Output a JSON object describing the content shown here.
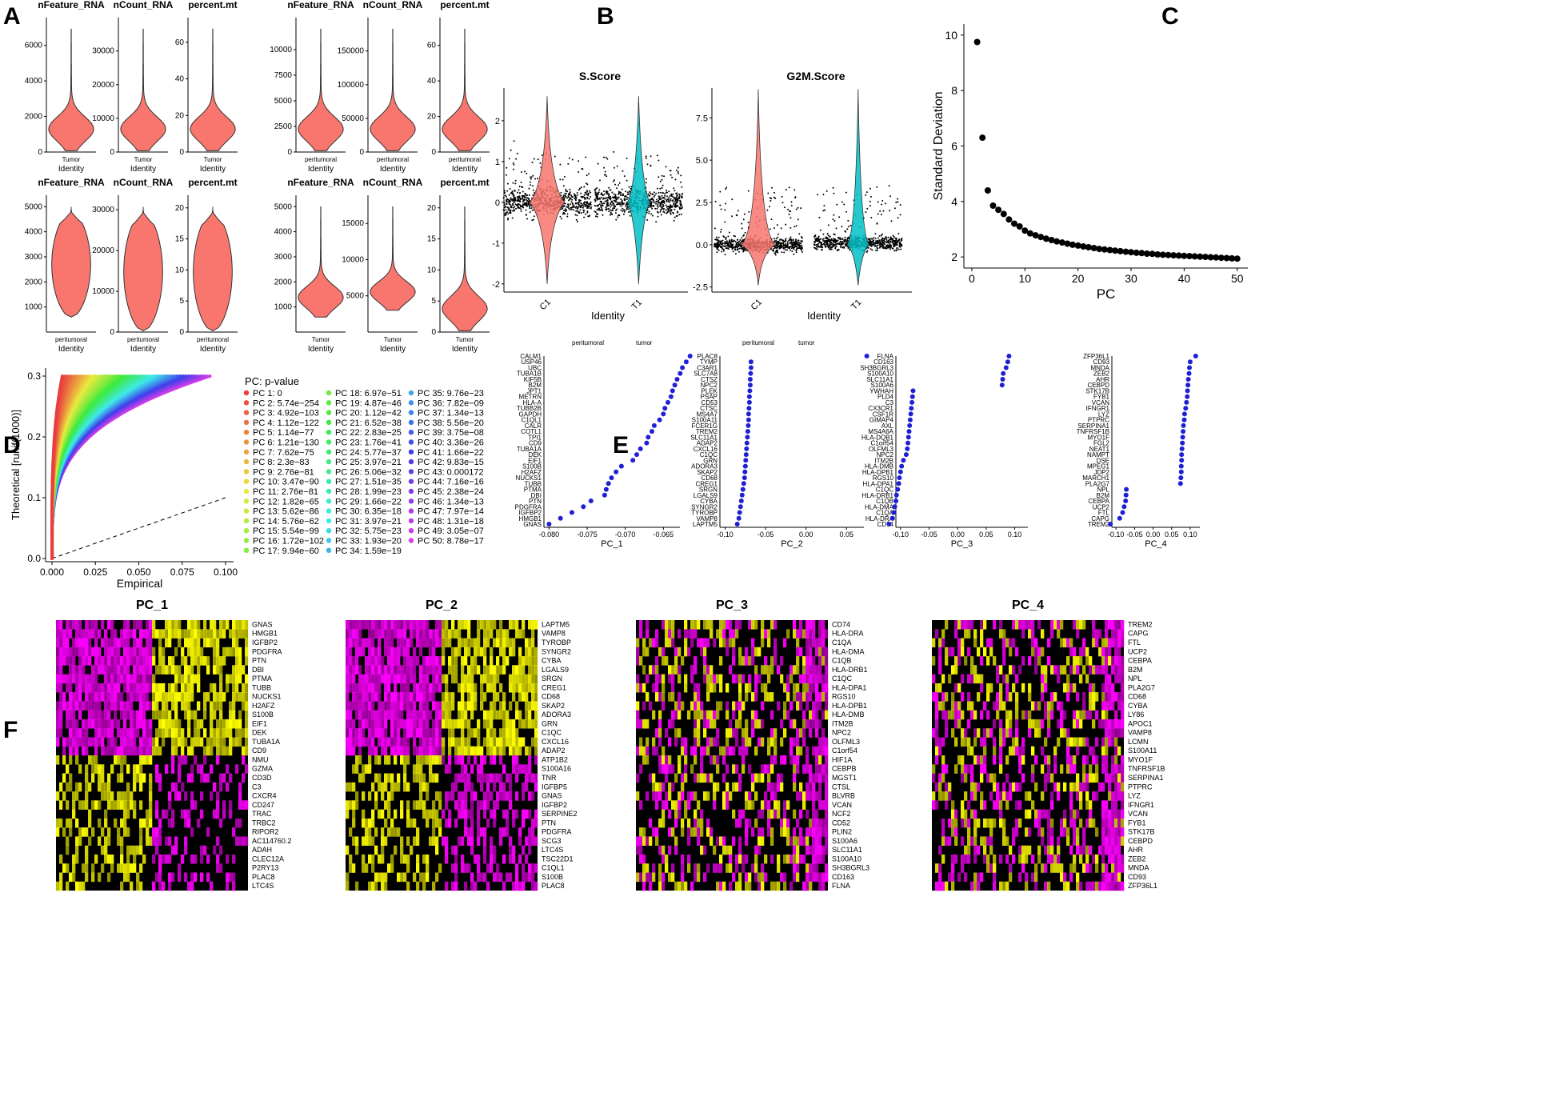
{
  "panel_labels": [
    "A",
    "B",
    "C",
    "D",
    "E",
    "F"
  ],
  "chart_data": [
    {
      "id": "A",
      "type": "violin",
      "rows": [
        [
          {
            "title": "nFeature_RNA",
            "group": "Tumor",
            "ylabel": "Identity",
            "ticks": [
              0,
              2000,
              4000,
              6000
            ],
            "ymax": 7200,
            "color": "#F8766D"
          },
          {
            "title": "nCount_RNA",
            "group": "Tumor",
            "ylabel": "Identity",
            "ticks": [
              0,
              10000,
              20000,
              30000
            ],
            "ymax": 38000,
            "color": "#F8766D"
          },
          {
            "title": "percent.mt",
            "group": "Tumor",
            "ylabel": "Identity",
            "ticks": [
              0,
              20,
              40,
              60
            ],
            "ymax": 70,
            "color": "#F8766D"
          },
          {
            "title": "nFeature_RNA",
            "group": "peritumoral",
            "ylabel": "Identity",
            "ticks": [
              0,
              2500,
              5000,
              7500,
              10000
            ],
            "ymax": 12500,
            "color": "#F8766D"
          },
          {
            "title": "nCount_RNA",
            "group": "peritumoral",
            "ylabel": "Identity",
            "ticks": [
              0,
              50000,
              100000,
              150000
            ],
            "ymax": 190000,
            "color": "#F8766D"
          },
          {
            "title": "percent.mt",
            "group": "peritumoral",
            "ylabel": "Identity",
            "ticks": [
              0,
              20,
              40,
              60
            ],
            "ymax": 72,
            "color": "#F8766D"
          }
        ],
        [
          {
            "title": "nFeature_RNA",
            "group": "peritumoral",
            "ylabel": "Identity",
            "ticks": [
              1000,
              2000,
              3000,
              4000,
              5000
            ],
            "ymax": 5200,
            "color": "#F8766D"
          },
          {
            "title": "nCount_RNA",
            "group": "peritumoral",
            "ylabel": "Identity",
            "ticks": [
              0,
              10000,
              20000,
              30000
            ],
            "ymax": 32000,
            "color": "#F8766D"
          },
          {
            "title": "percent.mt",
            "group": "peritumoral",
            "ylabel": "Identity",
            "ticks": [
              0,
              5,
              10,
              15,
              20
            ],
            "ymax": 21,
            "color": "#F8766D"
          },
          {
            "title": "nFeature_RNA",
            "group": "Tumor",
            "ylabel": "Identity",
            "ticks": [
              1000,
              2000,
              3000,
              4000,
              5000
            ],
            "ymax": 5200,
            "color": "#F8766D"
          },
          {
            "title": "nCount_RNA",
            "group": "Tumor",
            "ylabel": "Identity",
            "ticks": [
              5000,
              10000,
              15000
            ],
            "ymax": 18000,
            "color": "#F8766D"
          },
          {
            "title": "percent.mt",
            "group": "Tumor",
            "ylabel": "Identity",
            "ticks": [
              0,
              5,
              10,
              15,
              20
            ],
            "ymax": 21,
            "color": "#F8766D"
          }
        ]
      ]
    },
    {
      "id": "B",
      "type": "violin-jitter",
      "xlabel": "Identity",
      "categories": [
        "C1",
        "T1"
      ],
      "colors": [
        "#F8766D",
        "#00BFC4"
      ],
      "plots": [
        {
          "title": "S.Score",
          "ticks": [
            -2,
            -1,
            0,
            1,
            2
          ],
          "ylim": [
            -2.2,
            2.9
          ]
        },
        {
          "title": "G2M.Score",
          "ticks": [
            -2.5,
            0.0,
            2.5,
            5.0,
            7.5
          ],
          "ylim": [
            -2.8,
            9.5
          ]
        }
      ]
    },
    {
      "id": "C",
      "type": "scatter",
      "title": "",
      "xlabel": "PC",
      "ylabel": "Standard Deviation",
      "xticks": [
        0,
        10,
        20,
        30,
        40,
        50
      ],
      "yticks": [
        2,
        4,
        6,
        8,
        10
      ],
      "xlim": [
        -1.5,
        52
      ],
      "ylim": [
        1.6,
        10.4
      ],
      "x": [
        1,
        2,
        3,
        4,
        5,
        6,
        7,
        8,
        9,
        10,
        11,
        12,
        13,
        14,
        15,
        16,
        17,
        18,
        19,
        20,
        21,
        22,
        23,
        24,
        25,
        26,
        27,
        28,
        29,
        30,
        31,
        32,
        33,
        34,
        35,
        36,
        37,
        38,
        39,
        40,
        41,
        42,
        43,
        44,
        45,
        46,
        47,
        48,
        49,
        50
      ],
      "values": [
        9.75,
        6.3,
        4.4,
        3.85,
        3.7,
        3.55,
        3.35,
        3.2,
        3.1,
        2.95,
        2.85,
        2.78,
        2.72,
        2.66,
        2.61,
        2.56,
        2.52,
        2.48,
        2.44,
        2.41,
        2.38,
        2.35,
        2.32,
        2.29,
        2.27,
        2.25,
        2.23,
        2.21,
        2.19,
        2.17,
        2.15,
        2.14,
        2.12,
        2.11,
        2.09,
        2.08,
        2.07,
        2.06,
        2.05,
        2.04,
        2.03,
        2.02,
        2.01,
        2.0,
        1.99,
        1.98,
        1.97,
        1.96,
        1.95,
        1.94
      ]
    },
    {
      "id": "D",
      "type": "jackstraw",
      "xlabel": "Empirical",
      "ylabel": "Theoretical [runif(1000)]",
      "xticks": [
        "0.000",
        "0.025",
        "0.050",
        "0.075",
        "0.100"
      ],
      "yticks": [
        "0.0",
        "0.1",
        "0.2",
        "0.3"
      ],
      "legend_title": "PC: p-value",
      "legend": [
        "PC 1: 0",
        "PC 2: 5.74e−254",
        "PC 3: 4.92e−103",
        "PC 4: 1.12e−122",
        "PC 5: 1.14e−77",
        "PC 6: 1.21e−130",
        "PC 7: 7.62e−75",
        "PC 8: 2.3e−83",
        "PC 9: 2.76e−81",
        "PC 10: 3.47e−90",
        "PC 11: 2.76e−81",
        "PC 12: 1.82e−65",
        "PC 13: 5.62e−86",
        "PC 14: 5.76e−62",
        "PC 15: 5.54e−99",
        "PC 16: 1.72e−102",
        "PC 17: 9.94e−60",
        "PC 18: 6.97e−51",
        "PC 19: 4.87e−46",
        "PC 20: 1.12e−42",
        "PC 21: 6.52e−38",
        "PC 22: 2.83e−25",
        "PC 23: 1.76e−41",
        "PC 24: 5.77e−37",
        "PC 25: 3.97e−21",
        "PC 26: 5.06e−32",
        "PC 27: 1.51e−35",
        "PC 28: 1.99e−23",
        "PC 29: 1.66e−22",
        "PC 30: 6.35e−18",
        "PC 31: 3.97e−21",
        "PC 32: 5.75e−23",
        "PC 33: 1.93e−20",
        "PC 34: 1.59e−19",
        "PC 35: 9.76e−23",
        "PC 36: 7.82e−09",
        "PC 37: 1.34e−13",
        "PC 38: 5.56e−20",
        "PC 39: 3.75e−08",
        "PC 40: 3.36e−26",
        "PC 41: 1.66e−22",
        "PC 42: 9.83e−15",
        "PC 43: 0.000172",
        "PC 44: 7.16e−16",
        "PC 45: 2.38e−24",
        "PC 46: 1.34e−13",
        "PC 47: 7.97e−14",
        "PC 48: 1.31e−18",
        "PC 49: 3.05e−07",
        "PC 50: 8.78e−17"
      ]
    },
    {
      "id": "E",
      "type": "loadings",
      "top_labels": [
        "peritumoral",
        "tumor",
        "peritumoral",
        "tumor"
      ],
      "plots": [
        {
          "xlabel": "PC_1",
          "xticks": [
            "-0.080",
            "-0.075",
            "-0.070",
            "-0.065"
          ],
          "genes": [
            "CALM1",
            "USP46",
            "UBC",
            "TUBA1B",
            "KIF5B",
            "B2M",
            "JPT1",
            "METRN",
            "HLA-A",
            "TUBB2B",
            "GAPDH",
            "C1QL1",
            "CALR",
            "COTL1",
            "TPI1",
            "CD9",
            "TUBA1A",
            "DEK",
            "EIF1",
            "S100B",
            "H2AFZ",
            "NUCKS1",
            "TUBB",
            "PTMA",
            "DBI",
            "PTN",
            "PDGFRA",
            "IGFBP2",
            "HMGB1",
            "GNAS"
          ],
          "values": [
            -0.0615,
            -0.062,
            -0.0625,
            -0.0628,
            -0.0632,
            -0.0635,
            -0.0638,
            -0.064,
            -0.0644,
            -0.0648,
            -0.065,
            -0.0655,
            -0.0662,
            -0.0665,
            -0.067,
            -0.0672,
            -0.068,
            -0.0685,
            -0.069,
            -0.0705,
            -0.0712,
            -0.0718,
            -0.0722,
            -0.0725,
            -0.0727,
            -0.0745,
            -0.0755,
            -0.077,
            -0.0785,
            -0.08
          ]
        },
        {
          "xlabel": "PC_2",
          "xticks": [
            "-0.10",
            "-0.05",
            "0.00",
            "0.05"
          ],
          "genes": [
            "PLAC8",
            "TYMP",
            "C3AR1",
            "SLC7A8",
            "CTSZ",
            "NPC2",
            "PLEK",
            "PSAP",
            "CD53",
            "CTSC",
            "MS4A7",
            "S100A11",
            "FCER1G",
            "TREM2",
            "SLC11A1",
            "ADAP2",
            "CXCL16",
            "C1QC",
            "GRN",
            "ADORA3",
            "SKAP2",
            "CD68",
            "CREG1",
            "SRGN",
            "LGALS9",
            "CYBA",
            "SYNGR2",
            "TYROBP",
            "VAMP8",
            "LAPTM5"
          ],
          "values": [
            0.075,
            -0.068,
            -0.068,
            -0.0685,
            -0.069,
            -0.069,
            -0.0695,
            -0.07,
            -0.07,
            -0.0705,
            -0.071,
            -0.071,
            -0.0715,
            -0.072,
            -0.0725,
            -0.073,
            -0.0735,
            -0.074,
            -0.0745,
            -0.075,
            -0.0755,
            -0.076,
            -0.077,
            -0.078,
            -0.079,
            -0.08,
            -0.081,
            -0.082,
            -0.083,
            -0.085
          ]
        },
        {
          "xlabel": "PC_3",
          "xticks": [
            "-0.10",
            "-0.05",
            "0.00",
            "0.05",
            "0.10"
          ],
          "genes": [
            "FLNA",
            "CD163",
            "SH3BGRL3",
            "S100A10",
            "SLC11A1",
            "S100A6",
            "YWHAH",
            "PLD4",
            "C3",
            "CX3CR1",
            "CSF1R",
            "GIMAP4",
            "AXL",
            "MS4A6A",
            "HLA-DQB1",
            "C1orf54",
            "OLFML3",
            "NPC2",
            "ITM2B",
            "HLA-DMB",
            "HLA-DPB1",
            "RGS10",
            "HLA-DPA1",
            "C1QC",
            "HLA-DRB1",
            "C1QB",
            "HLA-DMA",
            "C1QA",
            "HLA-DRA",
            "CD74"
          ],
          "values": [
            0.09,
            0.088,
            0.085,
            0.08,
            0.079,
            0.078,
            -0.078,
            -0.079,
            -0.08,
            -0.081,
            -0.082,
            -0.083,
            -0.084,
            -0.085,
            -0.086,
            -0.087,
            -0.088,
            -0.09,
            -0.095,
            -0.098,
            -0.1,
            -0.102,
            -0.103,
            -0.105,
            -0.107,
            -0.108,
            -0.11,
            -0.112,
            -0.114,
            -0.12
          ]
        },
        {
          "xlabel": "PC_4",
          "xticks": [
            "-0.10",
            "-0.05",
            "0.00",
            "0.05",
            "0.10"
          ],
          "genes": [
            "ZFP36L1",
            "CD93",
            "MNDA",
            "ZEB2",
            "AHR",
            "CEBPD",
            "STK17B",
            "FYB1",
            "VCAN",
            "IFNGR1",
            "LYZ",
            "PTPRC",
            "SERPINA1",
            "TNFRSF1B",
            "MYO1F",
            "FGL2",
            "NEAT1",
            "NAMPT",
            "DSE",
            "MPEG1",
            "JDP2",
            "MARCH1",
            "PLA2G7",
            "NPL",
            "B2M",
            "CEBPA",
            "UCP2",
            "FTL",
            "CAPG",
            "TREM2"
          ],
          "values": [
            0.115,
            0.1,
            0.098,
            0.097,
            0.095,
            0.094,
            0.093,
            0.092,
            0.09,
            0.088,
            0.085,
            0.084,
            0.082,
            0.081,
            0.08,
            0.079,
            0.078,
            0.077,
            0.077,
            0.076,
            0.076,
            0.075,
            0.074,
            -0.072,
            -0.073,
            -0.074,
            -0.078,
            -0.082,
            -0.09,
            -0.115
          ]
        }
      ]
    },
    {
      "id": "F",
      "type": "heatmap",
      "palette": [
        "#FF00FF",
        "#000000",
        "#FFFF00"
      ],
      "plots": [
        {
          "title": "PC_1",
          "top_block": "yellow_right",
          "genes": [
            "GNAS",
            "HMGB1",
            "IGFBP2",
            "PDGFRA",
            "PTN",
            "DBI",
            "PTMA",
            "TUBB",
            "NUCKS1",
            "H2AFZ",
            "S100B",
            "EIF1",
            "DEK",
            "TUBA1A",
            "CD9",
            "NMU",
            "GZMA",
            "CD3D",
            "C3",
            "CXCR4",
            "CD247",
            "TRAC",
            "TRBC2",
            "RIPOR2",
            "AC114760.2",
            "ADAH",
            "CLEC12A",
            "P2RY13",
            "PLAC8",
            "LTC4S"
          ]
        },
        {
          "title": "PC_2",
          "top_block": "yellow_right",
          "genes": [
            "LAPTM5",
            "VAMP8",
            "TYROBP",
            "SYNGR2",
            "CYBA",
            "LGALS9",
            "SRGN",
            "CREG1",
            "CD68",
            "SKAP2",
            "ADORA3",
            "GRN",
            "C1QC",
            "CXCL16",
            "ADAP2",
            "ATP1B2",
            "S100A16",
            "TNR",
            "IGFBP5",
            "GNAS",
            "IGFBP2",
            "SERPINE2",
            "PTN",
            "PDGFRA",
            "SCG3",
            "LTC4S",
            "TSC22D1",
            "C1QL1",
            "S100B",
            "PLAC8"
          ]
        },
        {
          "title": "PC_3",
          "top_block": "mixed",
          "genes": [
            "CD74",
            "HLA-DRA",
            "C1QA",
            "HLA-DMA",
            "C1QB",
            "HLA-DRB1",
            "C1QC",
            "HLA-DPA1",
            "RGS10",
            "HLA-DPB1",
            "HLA-DMB",
            "ITM2B",
            "NPC2",
            "OLFML3",
            "C1orf54",
            "HIF1A",
            "CEBPB",
            "MGST1",
            "CTSL",
            "BLVRB",
            "VCAN",
            "NCF2",
            "CD52",
            "PLIN2",
            "S100A6",
            "SLC11A1",
            "S100A10",
            "SH3BGRL3",
            "CD163",
            "FLNA"
          ]
        },
        {
          "title": "PC_4",
          "top_block": "mixed",
          "genes": [
            "TREM2",
            "CAPG",
            "FTL",
            "UCP2",
            "CEBPA",
            "B2M",
            "NPL",
            "PLA2G7",
            "CD68",
            "CYBA",
            "LY86",
            "APOC1",
            "VAMP8",
            "LCMN",
            "S100A11",
            "MYO1F",
            "TNFRSF1B",
            "SERPINA1",
            "PTPRC",
            "LYZ",
            "IFNGR1",
            "VCAN",
            "FYB1",
            "STK17B",
            "CEBPD",
            "AHR",
            "ZEB2",
            "MNDA",
            "CD93",
            "ZFP36L1"
          ]
        }
      ]
    }
  ]
}
